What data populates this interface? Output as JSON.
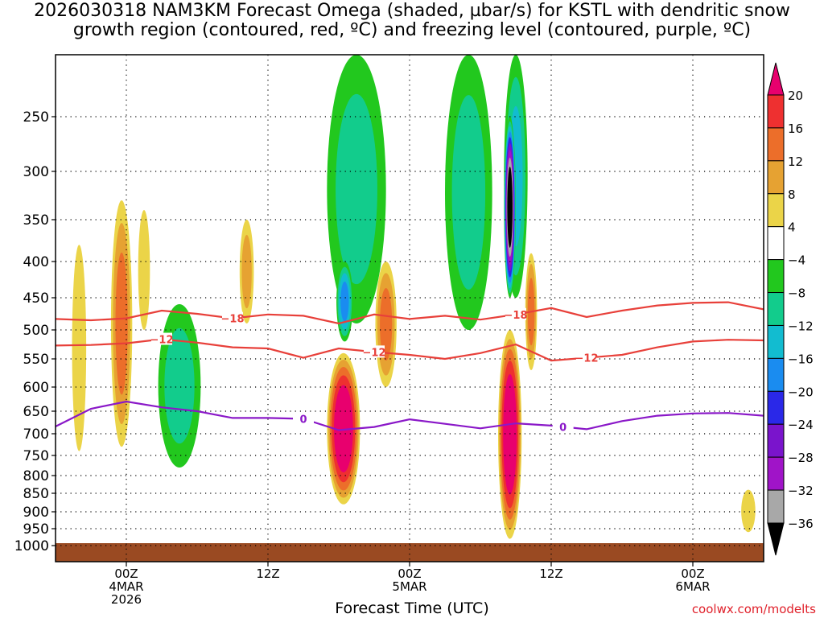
{
  "title_line1": "2026030318 NAM3KM Forecast Omega (shaded, µbar/s) for KSTL with dendritic snow",
  "title_line2": "growth region (contoured, red, ºC) and freezing level (contoured, purple, ºC)",
  "credit": "coolwx.com/modelts",
  "chart_data": {
    "type": "time-height",
    "xlabel": "Forecast Time (UTC)",
    "x_ticks": [
      {
        "hour": 6,
        "lines": [
          "00Z",
          "4MAR",
          "2026"
        ]
      },
      {
        "hour": 18,
        "lines": [
          "12Z"
        ]
      },
      {
        "hour": 30,
        "lines": [
          "00Z",
          "5MAR"
        ]
      },
      {
        "hour": 42,
        "lines": [
          "12Z"
        ]
      },
      {
        "hour": 54,
        "lines": [
          "00Z",
          "6MAR"
        ]
      }
    ],
    "xlim": [
      0,
      60
    ],
    "y_pressure_levels": [
      250,
      300,
      350,
      400,
      450,
      500,
      550,
      600,
      650,
      700,
      750,
      800,
      850,
      900,
      950,
      1000
    ],
    "ylim_hpa": [
      200,
      1000
    ],
    "colorbar_labels": [
      "20",
      "16",
      "12",
      "8",
      "4",
      "−4",
      "−8",
      "−12",
      "−16",
      "−20",
      "−24",
      "−28",
      "−32",
      "−36"
    ],
    "colorbar_colors": [
      "#e8006e",
      "#ee3030",
      "#ec6e2a",
      "#e6a232",
      "#ebd448",
      "#ffffff",
      "#22c81e",
      "#12cc8c",
      "#12bcd0",
      "#1a8cf0",
      "#2a28e8",
      "#7a14cc",
      "#a014c8",
      "#a8a8a8",
      "#000000"
    ],
    "contour_labels": {
      "dgz_upper": "−18",
      "dgz_lower": "−12",
      "freezing": "0"
    },
    "contour_series": {
      "dgz_upper": {
        "color": "#e8403a",
        "hours": [
          0,
          3,
          6,
          9,
          12,
          15,
          18,
          21,
          24,
          27,
          30,
          33,
          36,
          39,
          42,
          45,
          48,
          51,
          54,
          57,
          60
        ],
        "hpa": [
          483,
          485,
          482,
          470,
          475,
          482,
          476,
          478,
          490,
          476,
          483,
          478,
          484,
          476,
          466,
          480,
          470,
          462,
          458,
          457,
          468
        ]
      },
      "dgz_lower": {
        "color": "#e8403a",
        "hours": [
          0,
          3,
          6,
          9,
          12,
          15,
          18,
          21,
          24,
          27,
          30,
          33,
          36,
          39,
          42,
          45,
          48,
          51,
          54,
          57,
          60
        ],
        "hpa": [
          527,
          526,
          523,
          516,
          522,
          530,
          532,
          548,
          532,
          538,
          543,
          550,
          540,
          525,
          553,
          548,
          543,
          530,
          520,
          517,
          518
        ]
      },
      "freezing": {
        "color": "#8a18c8",
        "hours": [
          0,
          3,
          6,
          9,
          12,
          15,
          18,
          21,
          24,
          27,
          30,
          33,
          36,
          39,
          42,
          45,
          48,
          51,
          54,
          57,
          60
        ],
        "hpa": [
          684,
          645,
          630,
          642,
          650,
          665,
          665,
          667,
          692,
          685,
          668,
          678,
          688,
          677,
          682,
          690,
          672,
          660,
          655,
          654,
          660
        ]
      }
    },
    "omega_features": [
      {
        "hour": 2,
        "hpa": 560,
        "rx": 0.6,
        "rhpa": 180,
        "value": 6
      },
      {
        "hour": 5.6,
        "hpa": 530,
        "rx": 0.9,
        "rhpa": 200,
        "value": 14
      },
      {
        "hour": 7.5,
        "hpa": 420,
        "rx": 0.5,
        "rhpa": 80,
        "value": 6
      },
      {
        "hour": 10.5,
        "hpa": 620,
        "rx": 1.8,
        "rhpa": 160,
        "value": -8
      },
      {
        "hour": 16.2,
        "hpa": 420,
        "rx": 0.6,
        "rhpa": 70,
        "value": 10
      },
      {
        "hour": 25.5,
        "hpa": 330,
        "rx": 2.5,
        "rhpa": 160,
        "value": -8
      },
      {
        "hour": 24.5,
        "hpa": 460,
        "rx": 0.7,
        "rhpa": 60,
        "value": -16
      },
      {
        "hour": 24.4,
        "hpa": 710,
        "rx": 1.4,
        "rhpa": 170,
        "value": 22
      },
      {
        "hour": 28,
        "hpa": 500,
        "rx": 0.9,
        "rhpa": 100,
        "value": 12
      },
      {
        "hour": 35,
        "hpa": 330,
        "rx": 2.0,
        "rhpa": 170,
        "value": -8
      },
      {
        "hour": 39,
        "hpa": 320,
        "rx": 1.0,
        "rhpa": 130,
        "value": -12
      },
      {
        "hour": 38.5,
        "hpa": 350,
        "rx": 0.5,
        "rhpa": 100,
        "value": -40
      },
      {
        "hour": 38.5,
        "hpa": 740,
        "rx": 1.0,
        "rhpa": 240,
        "value": 22
      },
      {
        "hour": 40.3,
        "hpa": 480,
        "rx": 0.5,
        "rhpa": 90,
        "value": 14
      },
      {
        "hour": 58.7,
        "hpa": 900,
        "rx": 0.6,
        "rhpa": 60,
        "value": 5
      }
    ]
  }
}
